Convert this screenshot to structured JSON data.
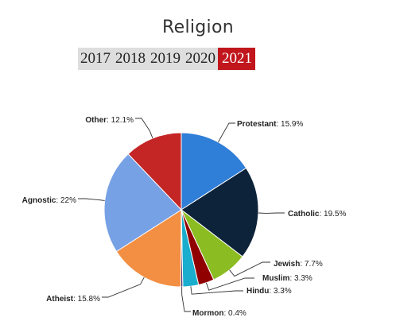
{
  "title": "Religion",
  "year_tabs": [
    "2017",
    "2018",
    "2019",
    "2020",
    "2021"
  ],
  "active_year": "2021",
  "colors": {
    "active_tab": "#c0161c",
    "inactive_tab": "#dedede"
  },
  "chart_data": {
    "type": "pie",
    "title": "",
    "slices": [
      {
        "name": "Protestant",
        "value": 15.9,
        "label": "15.9%",
        "color": "#2f7ed8"
      },
      {
        "name": "Catholic",
        "value": 19.5,
        "label": "19.5%",
        "color": "#0d233a"
      },
      {
        "name": "Jewish",
        "value": 7.7,
        "label": "7.7%",
        "color": "#8bbc21"
      },
      {
        "name": "Muslim",
        "value": 3.3,
        "label": "3.3%",
        "color": "#910000"
      },
      {
        "name": "Hindu",
        "value": 3.3,
        "label": "3.3%",
        "color": "#1aadce"
      },
      {
        "name": "Mormon",
        "value": 0.4,
        "label": "0.4%",
        "color": "#492970"
      },
      {
        "name": "Atheist",
        "value": 15.8,
        "label": "15.8%",
        "color": "#f28f43"
      },
      {
        "name": "Agnostic",
        "value": 22,
        "label": "22%",
        "color": "#77a1e5"
      },
      {
        "name": "Other",
        "value": 12.1,
        "label": "12.1%",
        "color": "#c42525"
      }
    ]
  }
}
